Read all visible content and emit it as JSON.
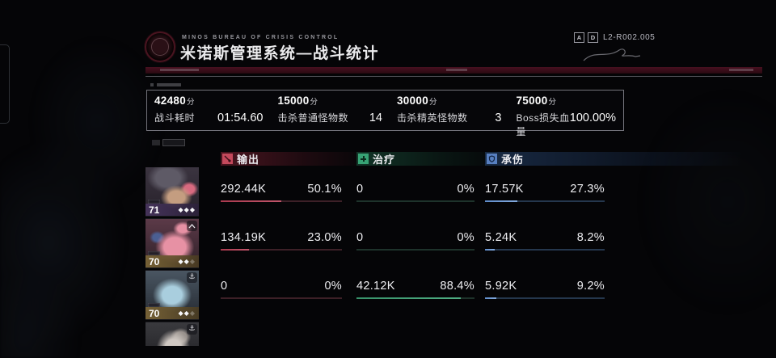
{
  "header": {
    "agency": "MINOS BUREAU OF CRISIS CONTROL",
    "title": "米诺斯管理系统—战斗统计",
    "doc_badge_a": "A",
    "doc_badge_d": "D",
    "doc_code": "L2-R002.005"
  },
  "score_summary": [
    {
      "score": "42480",
      "suffix": "分",
      "label": "战斗耗时",
      "value": "01:54.60"
    },
    {
      "score": "15000",
      "suffix": "分",
      "label": "击杀普通怪物数",
      "value": "14"
    },
    {
      "score": "30000",
      "suffix": "分",
      "label": "击杀精英怪物数",
      "value": "3"
    },
    {
      "score": "75000",
      "suffix": "分",
      "label": "Boss损失血量",
      "value": "100.00%"
    }
  ],
  "squad": {
    "members": [
      {
        "level": "71",
        "stars_bright": "◆◆◆",
        "stars_dim": "",
        "corner_icon": "none"
      },
      {
        "level": "70",
        "stars_bright": "◆◆",
        "stars_dim": "◆",
        "corner_icon": "chevron-up"
      },
      {
        "level": "70",
        "stars_bright": "◆◆",
        "stars_dim": "◆",
        "corner_icon": "anchor"
      },
      {
        "level": "",
        "stars_bright": "",
        "stars_dim": "",
        "corner_icon": "anchor"
      }
    ],
    "anchor_glyph": "⚓"
  },
  "stats": {
    "columns": [
      {
        "key": "damage-dealt",
        "label": "输出",
        "icon": "sword-icon",
        "accent": "#c4495c",
        "rows": [
          {
            "value": "292.44K",
            "pct": "50.1%",
            "pct_num": 50.1
          },
          {
            "value": "134.19K",
            "pct": "23.0%",
            "pct_num": 23.0
          },
          {
            "value": "0",
            "pct": "0%",
            "pct_num": 0
          }
        ]
      },
      {
        "key": "healing",
        "label": "治疗",
        "icon": "plus-icon",
        "accent": "#37a274",
        "rows": [
          {
            "value": "0",
            "pct": "0%",
            "pct_num": 0
          },
          {
            "value": "0",
            "pct": "0%",
            "pct_num": 0
          },
          {
            "value": "42.12K",
            "pct": "88.4%",
            "pct_num": 88.4
          }
        ]
      },
      {
        "key": "damage-taken",
        "label": "承伤",
        "icon": "shield-icon",
        "accent": "#577fc0",
        "rows": [
          {
            "value": "17.57K",
            "pct": "27.3%",
            "pct_num": 27.3
          },
          {
            "value": "5.24K",
            "pct": "8.2%",
            "pct_num": 8.2
          },
          {
            "value": "5.92K",
            "pct": "9.2%",
            "pct_num": 9.2
          }
        ]
      }
    ]
  }
}
